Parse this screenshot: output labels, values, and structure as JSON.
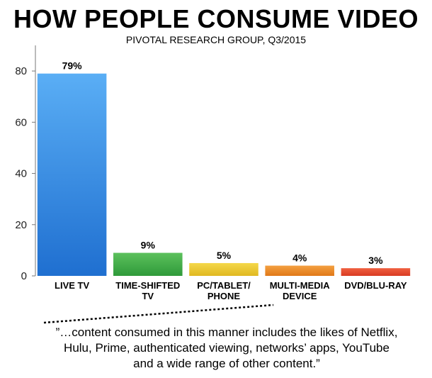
{
  "chart_data": {
    "type": "bar",
    "title": "HOW PEOPLE CONSUME VIDEO",
    "subtitle": "PIVOTAL RESEARCH GROUP, Q3/2015",
    "categories": [
      [
        "LIVE TV"
      ],
      [
        "TIME-SHIFTED",
        "TV"
      ],
      [
        "PC/TABLET/",
        "PHONE"
      ],
      [
        "MULTI-MEDIA",
        "DEVICE"
      ],
      [
        "DVD/BLU-RAY"
      ]
    ],
    "values": [
      79,
      9,
      5,
      4,
      3
    ],
    "data_labels": [
      "79%",
      "9%",
      "5%",
      "4%",
      "3%"
    ],
    "yticks": [
      0,
      20,
      40,
      60,
      80
    ],
    "ylim": [
      0,
      90
    ],
    "colors": [
      [
        "#5aaef5",
        "#1f6fd0"
      ],
      [
        "#5cc15c",
        "#2f9a3a"
      ],
      [
        "#f5d84a",
        "#e0b820"
      ],
      [
        "#f4a040",
        "#e07818"
      ],
      [
        "#f06040",
        "#d83a22"
      ]
    ],
    "grid": false,
    "annotation": {
      "target_category": "MULTI-MEDIA DEVICE",
      "lines": [
        "”…content consumed in this manner includes the likes of Netflix,",
        "Hulu, Prime, authenticated viewing, networks’ apps, YouTube",
        "and a wide range of other content.”"
      ]
    }
  }
}
